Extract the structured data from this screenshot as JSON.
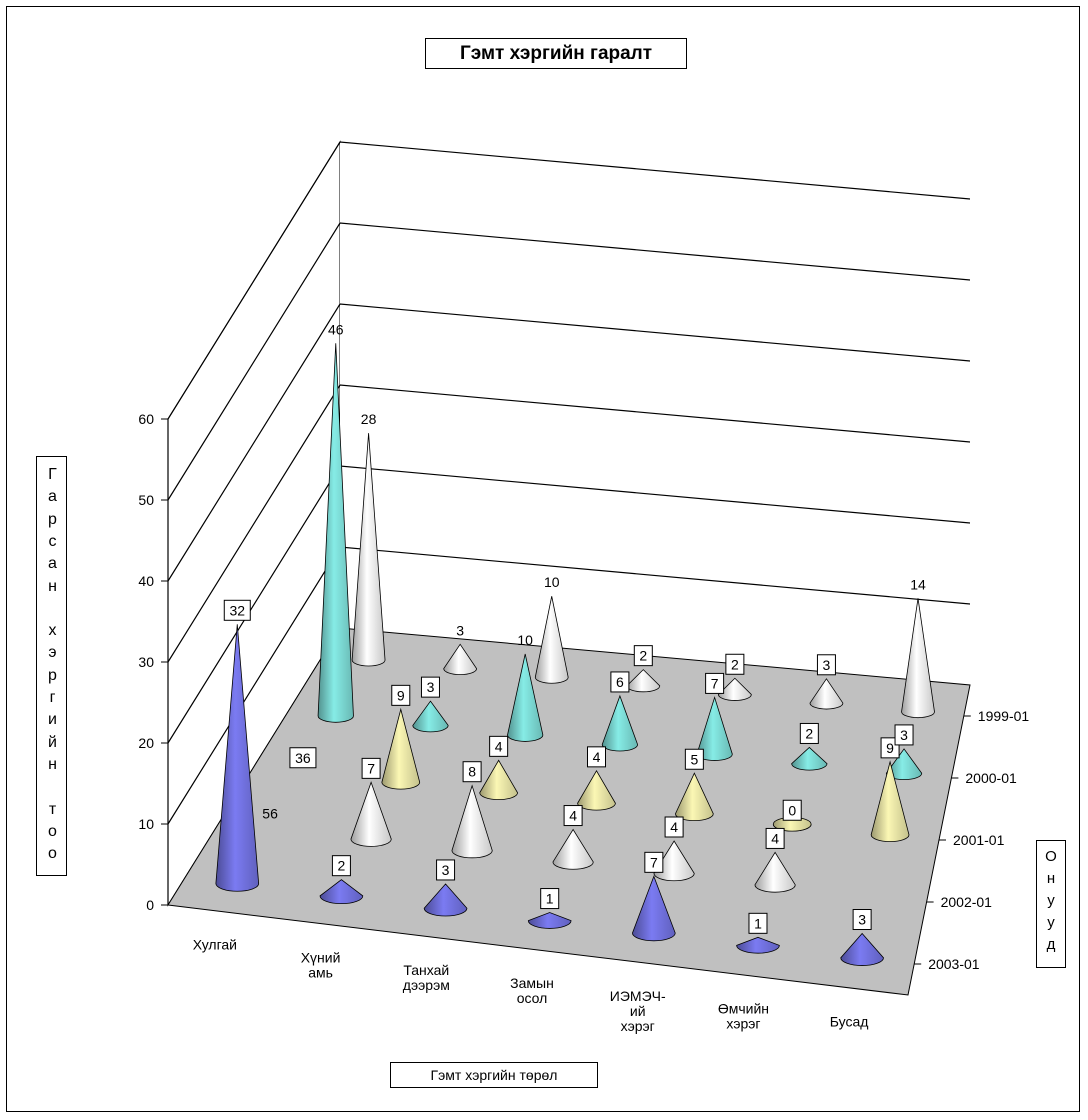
{
  "chart_data": {
    "type": "3d-cone",
    "title": "Гэмт хэргийн гаралт",
    "xlabel": "Гэмт хэргийн төрөл",
    "ylabel": "Гарсан хэргийн тоо",
    "zlabel": "Онууд",
    "ylim": [
      0,
      60
    ],
    "yticks": [
      0,
      10,
      20,
      30,
      40,
      50,
      60
    ],
    "categories": [
      [
        "Хулгай"
      ],
      [
        "Хүний",
        "амь"
      ],
      [
        "Танхай",
        "дээрэм"
      ],
      [
        "Замын",
        "осол"
      ],
      [
        "ИЭМЭЧ-",
        "ий",
        "хэрэг"
      ],
      [
        "Өмчийн",
        "хэрэг"
      ],
      [
        "Бусад"
      ]
    ],
    "series": [
      {
        "name": "2003-01",
        "color": "#7b7bf2",
        "values": [
          32,
          2,
          3,
          1,
          7,
          1,
          3
        ]
      },
      {
        "name": "2002-01",
        "color": "#ffffff",
        "values": [
          null,
          7,
          8,
          4,
          4,
          4,
          null
        ]
      },
      {
        "name": "2001-01",
        "color": "#fbf7b4",
        "values": [
          null,
          9,
          4,
          4,
          5,
          0,
          9
        ]
      },
      {
        "name": "2000-01",
        "color": "#86ece6",
        "values": [
          46,
          3,
          10,
          6,
          7,
          2,
          3
        ]
      },
      {
        "name": "1999-01",
        "color": "#ffffff",
        "values": [
          28,
          3,
          10,
          2,
          2,
          3,
          14
        ]
      }
    ],
    "visible_value_labels": [
      {
        "series": 0,
        "category": 0,
        "text": "32",
        "boxed": true
      },
      {
        "series": 0,
        "category": 1,
        "text": "2",
        "boxed": true
      },
      {
        "series": 0,
        "category": 2,
        "text": "3",
        "boxed": true
      },
      {
        "series": 0,
        "category": 3,
        "text": "1",
        "boxed": true
      },
      {
        "series": 0,
        "category": 4,
        "text": "7",
        "boxed": true
      },
      {
        "series": 0,
        "category": 5,
        "text": "1",
        "boxed": true
      },
      {
        "series": 0,
        "category": 6,
        "text": "3",
        "boxed": true
      },
      {
        "series": 1,
        "category": 0,
        "text": "56",
        "boxed": false
      },
      {
        "series": 1,
        "category": 1,
        "text": "7",
        "boxed": true
      },
      {
        "series": 1,
        "category": 2,
        "text": "8",
        "boxed": true
      },
      {
        "series": 1,
        "category": 3,
        "text": "4",
        "boxed": true
      },
      {
        "series": 1,
        "category": 4,
        "text": "4",
        "boxed": true
      },
      {
        "series": 1,
        "category": 5,
        "text": "4",
        "boxed": true
      },
      {
        "series": 2,
        "category": 0,
        "text": "36",
        "boxed": true
      },
      {
        "series": 2,
        "category": 1,
        "text": "9",
        "boxed": true
      },
      {
        "series": 2,
        "category": 2,
        "text": "4",
        "boxed": true
      },
      {
        "series": 2,
        "category": 3,
        "text": "4",
        "boxed": true
      },
      {
        "series": 2,
        "category": 4,
        "text": "5",
        "boxed": true
      },
      {
        "series": 2,
        "category": 5,
        "text": "0",
        "boxed": true
      },
      {
        "series": 2,
        "category": 6,
        "text": "9",
        "boxed": true
      },
      {
        "series": 3,
        "category": 0,
        "text": "46",
        "boxed": false
      },
      {
        "series": 3,
        "category": 1,
        "text": "3",
        "boxed": true
      },
      {
        "series": 3,
        "category": 2,
        "text": "10",
        "boxed": false
      },
      {
        "series": 3,
        "category": 3,
        "text": "6",
        "boxed": true
      },
      {
        "series": 3,
        "category": 4,
        "text": "7",
        "boxed": true
      },
      {
        "series": 3,
        "category": 5,
        "text": "2",
        "boxed": true
      },
      {
        "series": 3,
        "category": 6,
        "text": "3",
        "boxed": true
      },
      {
        "series": 4,
        "category": 0,
        "text": "28",
        "boxed": false
      },
      {
        "series": 4,
        "category": 1,
        "text": "3",
        "boxed": false
      },
      {
        "series": 4,
        "category": 2,
        "text": "10",
        "boxed": false
      },
      {
        "series": 4,
        "category": 3,
        "text": "2",
        "boxed": true
      },
      {
        "series": 4,
        "category": 4,
        "text": "2",
        "boxed": true
      },
      {
        "series": 4,
        "category": 5,
        "text": "3",
        "boxed": true
      },
      {
        "series": 4,
        "category": 6,
        "text": "14",
        "boxed": false
      }
    ],
    "grid": true,
    "floor_color": "#c0c0c0"
  }
}
